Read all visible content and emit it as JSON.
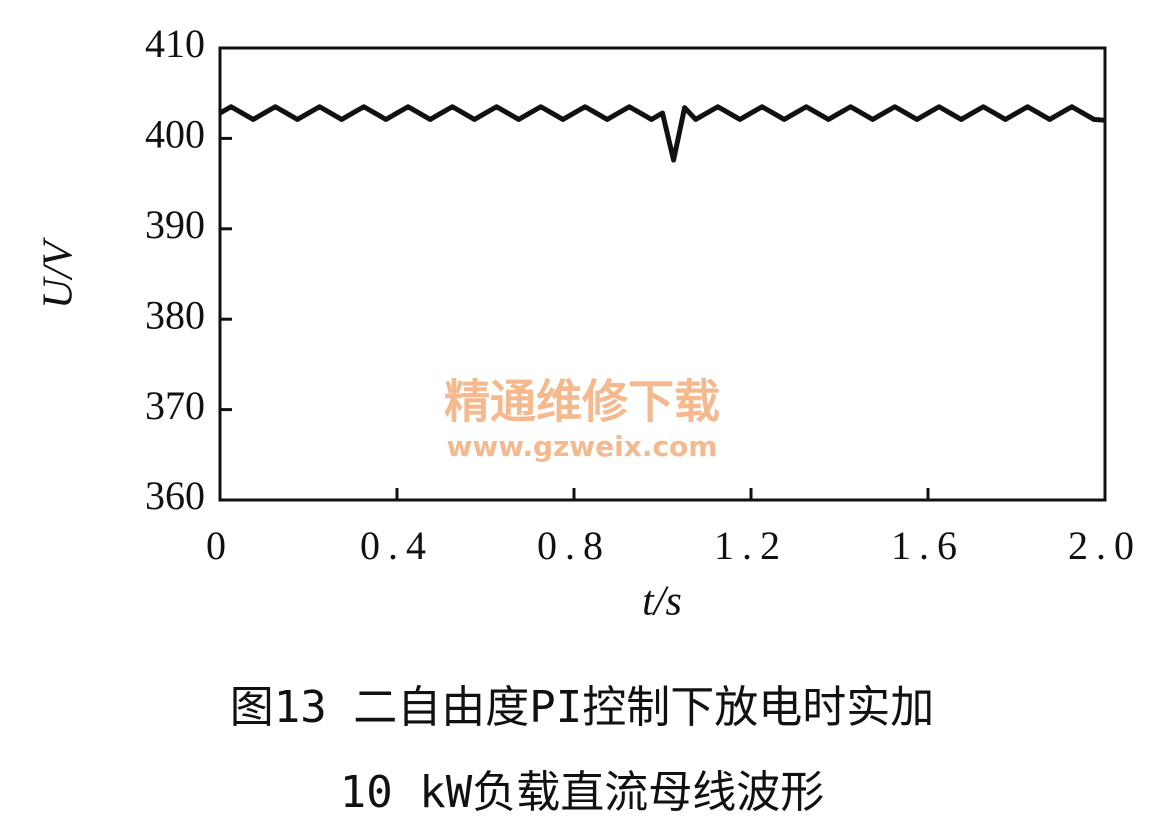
{
  "chart_data": {
    "type": "line",
    "ylabel": "U/V",
    "xlabel": "t/s",
    "caption": [
      "图13 二自由度PI控制下放电时实加",
      "10 kW负载直流母线波形"
    ],
    "watermark": [
      "精通维修下载",
      "www.gzweix.com"
    ],
    "color": "#111111",
    "xlim": [
      0,
      2
    ],
    "ylim": [
      360,
      410
    ],
    "xticks": [
      0,
      0.4,
      0.8,
      1.2,
      1.6,
      {
        "value": 2,
        "label": "2.0"
      }
    ],
    "yticks": [
      360,
      370,
      380,
      390,
      400,
      410
    ],
    "x": [
      0,
      0.025,
      0.05,
      0.075,
      0.1,
      0.125,
      0.15,
      0.175,
      0.2,
      0.225,
      0.25,
      0.275,
      0.3,
      0.325,
      0.35,
      0.375,
      0.4,
      0.425,
      0.45,
      0.475,
      0.5,
      0.525,
      0.55,
      0.575,
      0.6,
      0.625,
      0.65,
      0.675,
      0.7,
      0.725,
      0.75,
      0.775,
      0.8,
      0.825,
      0.85,
      0.875,
      0.9,
      0.925,
      0.95,
      0.975,
      1.0,
      1.025,
      1.05,
      1.075,
      1.1,
      1.125,
      1.15,
      1.175,
      1.2,
      1.225,
      1.25,
      1.275,
      1.3,
      1.325,
      1.35,
      1.375,
      1.4,
      1.425,
      1.45,
      1.475,
      1.5,
      1.525,
      1.55,
      1.575,
      1.6,
      1.625,
      1.65,
      1.675,
      1.7,
      1.725,
      1.75,
      1.775,
      1.8,
      1.825,
      1.85,
      1.875,
      1.9,
      1.925,
      1.95,
      1.975,
      2.0
    ],
    "values": [
      402.8,
      403.5,
      402.8,
      402.1,
      402.8,
      403.5,
      402.8,
      402.1,
      402.8,
      403.5,
      402.8,
      402.1,
      402.8,
      403.5,
      402.8,
      402.1,
      402.8,
      403.5,
      402.8,
      402.1,
      402.8,
      403.5,
      402.8,
      402.1,
      402.8,
      403.5,
      402.8,
      402.1,
      402.8,
      403.5,
      402.8,
      402.1,
      402.8,
      403.5,
      402.8,
      402.1,
      402.8,
      403.5,
      402.8,
      402.1,
      402.8,
      397.6,
      403.4,
      402.1,
      402.8,
      403.5,
      402.8,
      402.1,
      402.8,
      403.5,
      402.8,
      402.1,
      402.8,
      403.5,
      402.8,
      402.1,
      402.8,
      403.5,
      402.8,
      402.1,
      402.8,
      403.5,
      402.8,
      402.1,
      402.8,
      403.5,
      402.8,
      402.1,
      402.8,
      403.5,
      402.8,
      402.1,
      402.8,
      403.5,
      402.8,
      402.1,
      402.8,
      403.5,
      402.8,
      402.1,
      402.0
    ]
  }
}
